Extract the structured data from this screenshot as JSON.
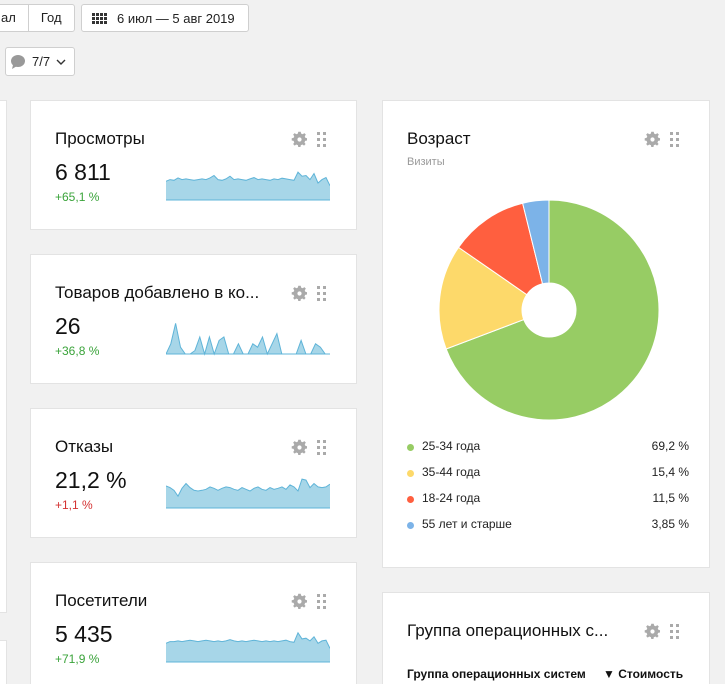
{
  "toolbar": {
    "period_tabs": [
      "ал",
      "Год"
    ],
    "date_range": "6 июл — 5 авг 2019",
    "segments_label": "7/7"
  },
  "widgets": [
    {
      "title": "Просмотры",
      "value": "6 811",
      "delta": "+65,1 %",
      "delta_sign": "positive",
      "spark": [
        0.55,
        0.6,
        0.58,
        0.65,
        0.6,
        0.62,
        0.6,
        0.58,
        0.6,
        0.62,
        0.6,
        0.65,
        0.72,
        0.6,
        0.58,
        0.62,
        0.7,
        0.6,
        0.62,
        0.6,
        0.58,
        0.62,
        0.66,
        0.6,
        0.62,
        0.6,
        0.58,
        0.62,
        0.6,
        0.64,
        0.62,
        0.6,
        0.58,
        0.82,
        0.7,
        0.72,
        0.6,
        0.78,
        0.5,
        0.6,
        0.66,
        0.42
      ]
    },
    {
      "title": "Товаров добавлено в ко...",
      "value": "26",
      "delta": "+36,8 %",
      "delta_sign": "positive",
      "spark": [
        0,
        0.3,
        0.9,
        0.2,
        0,
        0,
        0.1,
        0.5,
        0,
        0.5,
        0,
        0.4,
        0.5,
        0,
        0,
        0.3,
        0,
        0,
        0.3,
        0.2,
        0.5,
        0,
        0.3,
        0.6,
        0,
        0,
        0,
        0,
        0.4,
        0,
        0,
        0.3,
        0.2,
        0,
        0
      ]
    },
    {
      "title": "Отказы",
      "value": "21,2 %",
      "delta": "+1,1 %",
      "delta_sign": "negative",
      "spark": [
        0.65,
        0.6,
        0.52,
        0.35,
        0.58,
        0.72,
        0.6,
        0.52,
        0.5,
        0.52,
        0.55,
        0.62,
        0.58,
        0.52,
        0.58,
        0.62,
        0.6,
        0.55,
        0.52,
        0.6,
        0.55,
        0.5,
        0.58,
        0.62,
        0.55,
        0.52,
        0.6,
        0.55,
        0.58,
        0.62,
        0.55,
        0.68,
        0.62,
        0.5,
        0.85,
        0.82,
        0.6,
        0.72,
        0.62,
        0.6,
        0.62,
        0.7
      ]
    },
    {
      "title": "Посетители",
      "value": "5 435",
      "delta": "+71,9 %",
      "delta_sign": "positive",
      "spark": [
        0.55,
        0.6,
        0.6,
        0.62,
        0.6,
        0.62,
        0.64,
        0.62,
        0.6,
        0.62,
        0.64,
        0.62,
        0.6,
        0.62,
        0.6,
        0.62,
        0.66,
        0.62,
        0.6,
        0.62,
        0.6,
        0.62,
        0.64,
        0.62,
        0.6,
        0.62,
        0.6,
        0.62,
        0.6,
        0.62,
        0.64,
        0.6,
        0.58,
        0.86,
        0.68,
        0.7,
        0.62,
        0.74,
        0.55,
        0.62,
        0.64,
        0.4
      ]
    }
  ],
  "age_widget": {
    "title": "Возраст",
    "subtitle": "Визиты",
    "colors": {
      "25-34": "#97cc64",
      "35-44": "#fdd96a",
      "18-24": "#ff5f3f",
      "55+": "#7cb3e8"
    },
    "items": [
      {
        "label": "25-34 года",
        "pct": "69,2 %",
        "value": 69.2,
        "color": "#97cc64"
      },
      {
        "label": "35-44 года",
        "pct": "15,4 %",
        "value": 15.4,
        "color": "#fdd96a"
      },
      {
        "label": "18-24 года",
        "pct": "11,5 %",
        "value": 11.5,
        "color": "#ff5f3f"
      },
      {
        "label": "55 лет и старше",
        "pct": "3,85 %",
        "value": 3.85,
        "color": "#7cb3e8"
      }
    ]
  },
  "os_widget": {
    "title": "Группа операционных с...",
    "col1": "Группа операционных систем",
    "col2": "▼ Стоимость"
  },
  "spark_color": "#a7d6e8",
  "spark_line_color": "#5fb4d8"
}
